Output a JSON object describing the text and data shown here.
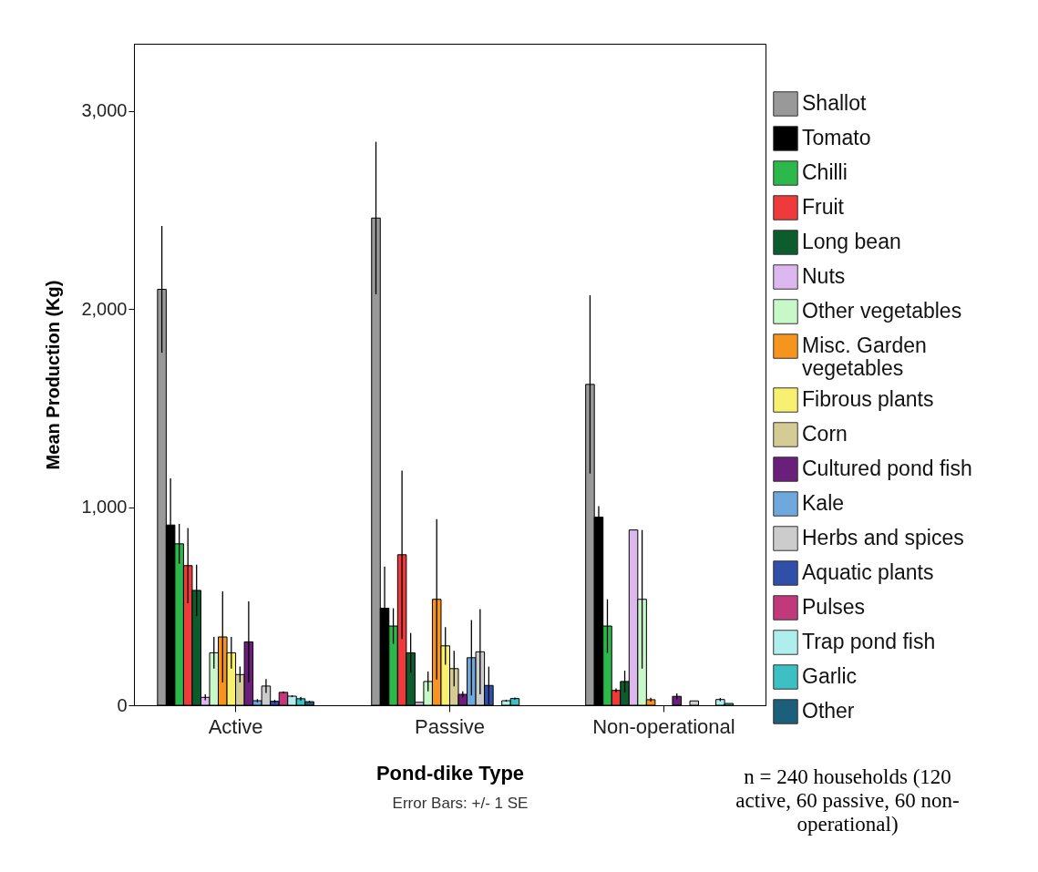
{
  "chart_data": {
    "type": "bar",
    "xlabel": "Pond-dike Type",
    "ylabel": "Mean Production (Kg)",
    "categories": [
      "Active",
      "Passive",
      "Non-operational"
    ],
    "ylim": [
      0,
      3340
    ],
    "yticks": [
      0,
      {
        "value": 1000,
        "label": "1,000"
      },
      {
        "value": 2000,
        "label": "2,000"
      },
      {
        "value": 3000,
        "label": "3,000"
      }
    ],
    "grid": false,
    "legend": "right",
    "annotations": [
      "Error Bars: +/- 1 SE",
      "n = 240 households (120 active, 60 passive, 60 non-operational)"
    ],
    "series": [
      {
        "name": "Shallot",
        "color": "#999999",
        "values": [
          2100,
          2460,
          1620
        ],
        "errors": [
          320,
          385,
          450
        ]
      },
      {
        "name": "Tomato",
        "color": "#000000",
        "values": [
          910,
          490,
          950
        ],
        "errors": [
          235,
          210,
          55
        ]
      },
      {
        "name": "Chilli",
        "color": "#2db84b",
        "values": [
          815,
          400,
          400
        ],
        "errors": [
          100,
          90,
          135
        ]
      },
      {
        "name": "Fruit",
        "color": "#ee3a3a",
        "values": [
          705,
          760,
          75
        ],
        "errors": [
          190,
          425,
          10
        ]
      },
      {
        "name": "Long bean",
        "color": "#0d5c2e",
        "values": [
          580,
          265,
          120
        ],
        "errors": [
          130,
          100,
          55
        ]
      },
      {
        "name": "Nuts",
        "color": "#dcb8ee",
        "values": [
          40,
          15,
          885
        ],
        "errors": [
          15,
          null,
          null
        ]
      },
      {
        "name": "Other vegetables",
        "color": "#c8f7c8",
        "values": [
          265,
          120,
          535
        ],
        "errors": [
          80,
          50,
          350
        ]
      },
      {
        "name": "Misc. Garden vegetables",
        "color": "#f7941d",
        "values": [
          345,
          535,
          28
        ],
        "errors": [
          230,
          405,
          10
        ]
      },
      {
        "name": "Fibrous plants",
        "color": "#f8f070",
        "values": [
          265,
          300,
          null
        ],
        "errors": [
          80,
          95,
          null
        ]
      },
      {
        "name": "Corn",
        "color": "#d4cc94",
        "values": [
          155,
          185,
          null
        ],
        "errors": [
          40,
          90,
          null
        ]
      },
      {
        "name": "Cultured pond fish",
        "color": "#6a1f7a",
        "values": [
          320,
          55,
          45
        ],
        "errors": [
          205,
          15,
          15
        ]
      },
      {
        "name": "Kale",
        "color": "#6fa8dc",
        "values": [
          23,
          240,
          null
        ],
        "errors": [
          8,
          190,
          null
        ]
      },
      {
        "name": "Herbs and spices",
        "color": "#cccccc",
        "values": [
          97,
          270,
          22
        ],
        "errors": [
          35,
          215,
          null
        ]
      },
      {
        "name": "Aquatic plants",
        "color": "#2f4fa8",
        "values": [
          20,
          100,
          null
        ],
        "errors": [
          8,
          95,
          null
        ]
      },
      {
        "name": "Pulses",
        "color": "#c1397a",
        "values": [
          65,
          null,
          null
        ],
        "errors": [
          5,
          null,
          null
        ]
      },
      {
        "name": "Trap pond fish",
        "color": "#b0eeee",
        "values": [
          46,
          23,
          29
        ],
        "errors": [
          5,
          5,
          8
        ]
      },
      {
        "name": "Garlic",
        "color": "#3cc0c4",
        "values": [
          33,
          34,
          9
        ],
        "errors": [
          10,
          5,
          null
        ]
      },
      {
        "name": "Other",
        "color": "#1b5f7a",
        "values": [
          18,
          null,
          null
        ],
        "errors": [
          5,
          null,
          null
        ]
      }
    ]
  }
}
